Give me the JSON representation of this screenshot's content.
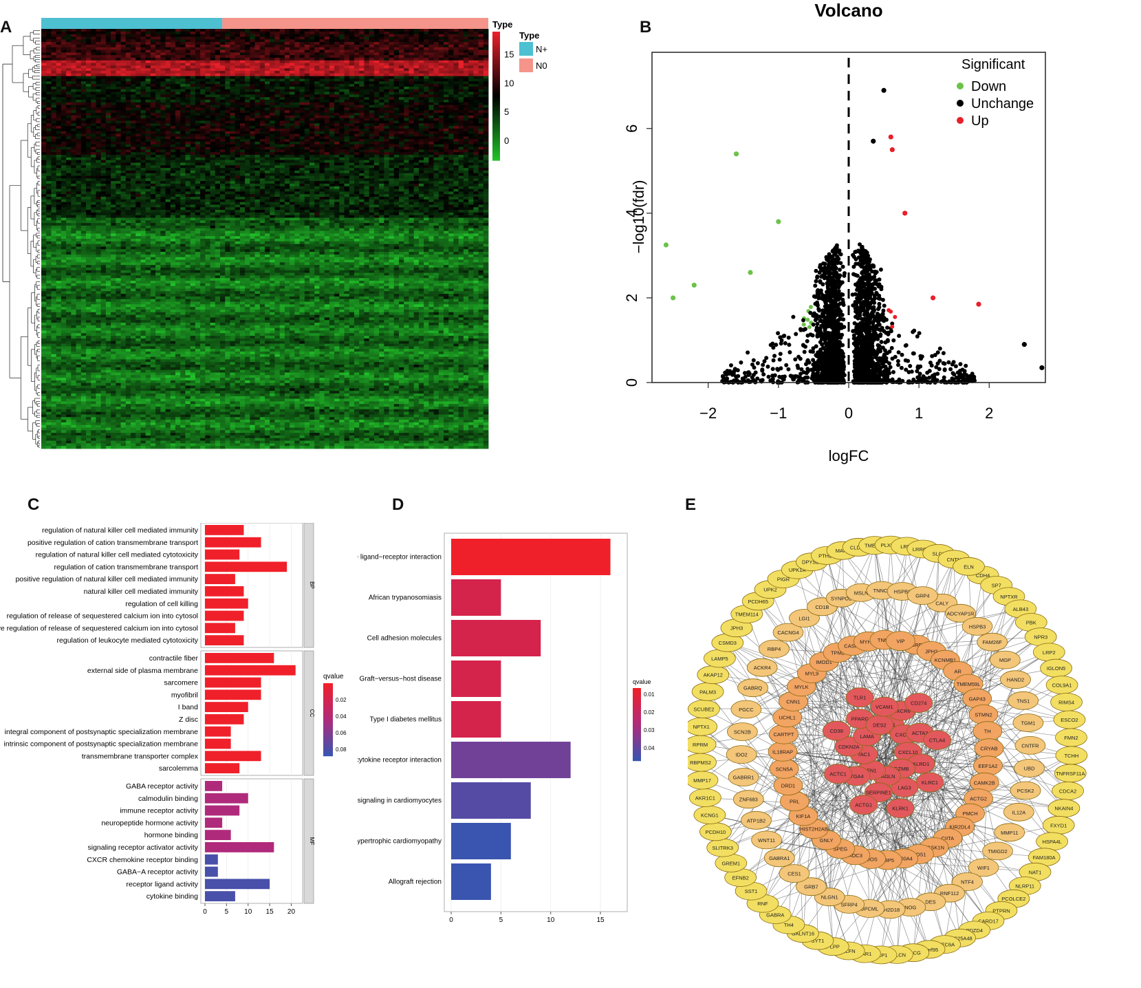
{
  "panels": {
    "a": "A",
    "b": "B",
    "c": "C",
    "d": "D",
    "e": "E"
  },
  "chart_data": [
    {
      "type": "heatmap",
      "panel": "A",
      "legend_title": "Type",
      "group_legend_title": "Type",
      "groups": [
        {
          "name": "N+",
          "color": "#4dc0d1"
        },
        {
          "name": "N0",
          "color": "#f4948a"
        }
      ],
      "colorbar_ticks": [
        15,
        10,
        5,
        0
      ],
      "colorbar_range": [
        -3,
        19
      ],
      "colors": {
        "low": "#22c02a",
        "mid": "#000000",
        "high": "#e8202a"
      }
    },
    {
      "type": "scatter",
      "panel": "B",
      "title": "Volcano",
      "xlabel": "logFC",
      "ylabel": "−log10(fdr)",
      "xlim": [
        -2.8,
        2.8
      ],
      "ylim": [
        0,
        7.8
      ],
      "xticks": [
        -2,
        -1,
        0,
        1,
        2
      ],
      "xtick_labels": [
        "−2",
        "−1",
        "0",
        "1",
        "2"
      ],
      "yticks": [
        0,
        2,
        4,
        6
      ],
      "ytick_labels": [
        "0",
        "2",
        "4",
        "6"
      ],
      "legend_title": "Significant",
      "legend_position": "top-right",
      "series": [
        {
          "name": "Down",
          "color": "#6cc24a"
        },
        {
          "name": "Unchange",
          "color": "#000000"
        },
        {
          "name": "Up",
          "color": "#e8202a"
        }
      ],
      "highlight_points": [
        {
          "x": -2.6,
          "y": 3.25,
          "s": "Down"
        },
        {
          "x": -1.6,
          "y": 5.4,
          "s": "Down"
        },
        {
          "x": -1.0,
          "y": 3.8,
          "s": "Down"
        },
        {
          "x": -2.5,
          "y": 2.0,
          "s": "Down"
        },
        {
          "x": -2.2,
          "y": 2.3,
          "s": "Down"
        },
        {
          "x": -1.4,
          "y": 2.6,
          "s": "Down"
        },
        {
          "x": 0.5,
          "y": 6.9,
          "s": "Unchange"
        },
        {
          "x": 0.35,
          "y": 5.7,
          "s": "Unchange"
        },
        {
          "x": 2.5,
          "y": 0.9,
          "s": "Unchange"
        },
        {
          "x": 2.75,
          "y": 0.35,
          "s": "Unchange"
        },
        {
          "x": 0.6,
          "y": 5.8,
          "s": "Up"
        },
        {
          "x": 0.62,
          "y": 5.5,
          "s": "Up"
        },
        {
          "x": 0.8,
          "y": 4.0,
          "s": "Up"
        },
        {
          "x": 1.85,
          "y": 1.85,
          "s": "Up"
        },
        {
          "x": 1.2,
          "y": 2.0,
          "s": "Up"
        }
      ]
    },
    {
      "type": "bar",
      "panel": "C",
      "orientation": "horizontal",
      "xticks": [
        0,
        5,
        10,
        15,
        20
      ],
      "xlim": [
        0,
        22
      ],
      "legend_title": "qvalue",
      "legend_ticks": [
        "0.02",
        "0.04",
        "0.06",
        "0.08"
      ],
      "groups": [
        {
          "name": "BP",
          "categories": [
            "regulation of natural killer cell mediated immunity",
            "positive regulation of cation transmembrane transport",
            "regulation of natural killer cell mediated cytotoxicity",
            "regulation of cation transmembrane transport",
            "positive regulation of natural killer cell mediated immunity",
            "natural killer cell mediated immunity",
            "regulation of cell killing",
            "regulation of release of sequestered calcium ion into cytosol",
            "positive regulation of release of sequestered calcium ion into cytosol",
            "regulation of leukocyte mediated cytotoxicity"
          ],
          "values": [
            9,
            13,
            8,
            19,
            7,
            9,
            10,
            9,
            7,
            9
          ],
          "qvalues": [
            0.01,
            0.01,
            0.01,
            0.01,
            0.01,
            0.01,
            0.01,
            0.01,
            0.01,
            0.01
          ]
        },
        {
          "name": "CC",
          "categories": [
            "contractile fiber",
            "external side of plasma membrane",
            "sarcomere",
            "myofibril",
            "I band",
            "Z disc",
            "integral component of postsynaptic specialization membrane",
            "intrinsic component of postsynaptic specialization membrane",
            "transmembrane transporter complex",
            "sarcolemma"
          ],
          "values": [
            16,
            21,
            13,
            13,
            10,
            9,
            6,
            6,
            13,
            8
          ],
          "qvalues": [
            0.01,
            0.01,
            0.01,
            0.01,
            0.01,
            0.01,
            0.01,
            0.01,
            0.01,
            0.01
          ]
        },
        {
          "name": "MF",
          "categories": [
            "GABA receptor activity",
            "calmodulin binding",
            "immune receptor activity",
            "neuropeptide hormone activity",
            "hormone binding",
            "signaling receptor activator activity",
            "CXCR chemokine receptor binding",
            "GABA−A receptor activity",
            "receptor ligand activity",
            "cytokine binding"
          ],
          "values": [
            4,
            10,
            8,
            4,
            6,
            16,
            3,
            3,
            15,
            7
          ],
          "qvalues": [
            0.05,
            0.05,
            0.05,
            0.05,
            0.05,
            0.05,
            0.085,
            0.085,
            0.085,
            0.085
          ]
        }
      ]
    },
    {
      "type": "bar",
      "panel": "D",
      "orientation": "horizontal",
      "xticks": [
        0,
        5,
        10,
        15
      ],
      "xlim": [
        0,
        17
      ],
      "legend_title": "qvalue",
      "legend_ticks": [
        "0.01",
        "0.02",
        "0.03",
        "0.04"
      ],
      "categories": [
        "Neuroactive ligand−receptor interaction",
        "African trypanosomiasis",
        "Cell adhesion molecules",
        "Graft−versus−host disease",
        "Type I diabetes mellitus",
        "Cytokine−cytokine receptor interaction",
        "Adrenergic signaling in cardiomyocytes",
        "Hypertrophic cardiomyopathy",
        "Allograft rejection"
      ],
      "values": [
        16,
        5,
        9,
        5,
        5,
        12,
        8,
        6,
        4
      ],
      "qvalues": [
        0.003,
        0.012,
        0.012,
        0.012,
        0.012,
        0.036,
        0.041,
        0.046,
        0.046
      ]
    },
    {
      "type": "network",
      "panel": "E",
      "rings": [
        {
          "level": "outer",
          "color": "#f2df62",
          "nodes": [
            "CDH4",
            "SP7",
            "NPTXR",
            "ALB43",
            "PBK",
            "NPR3",
            "LRP2",
            "IGLON5",
            "COL9A1",
            "RIMS4",
            "ESCO2",
            "FMN2",
            "TCHH",
            "TNFRSF11A",
            "CDCA2",
            "NKAIN4",
            "FXYD1",
            "HSPA4L",
            "FAM180A",
            "NAT1",
            "NLRP11",
            "PCOLCE2",
            "PTPRN",
            "CARD17",
            "PDZD4",
            "SLC25A48",
            "CLEC6A",
            "C1orf95",
            "SGCG",
            "NALCN",
            "PKP1",
            "HAR1",
            "ELFN",
            "PLPP",
            "SYT1",
            "GALNT16",
            "TH4",
            "GABRA",
            "RNF",
            "SST1",
            "EFNB2",
            "GREM1",
            "SLITRK3",
            "PCDH10",
            "KCNG1",
            "AKR1C1",
            "MMP17",
            "RBPMS2",
            "RPRM",
            "NPTX1",
            "SCUBE2",
            "PALM3",
            "AKAP12",
            "LAMP5",
            "CSMD3",
            "JPH3",
            "TMEM114",
            "PCDH65",
            "UPK2",
            "PIGR",
            "UPK1A",
            "DPYSL4",
            "PTHLH",
            "MAP6",
            "CLDN1",
            "TMEFF2",
            "PLXNA4",
            "LRP2",
            "LRRC4C",
            "SLC6",
            "CNTN",
            "ELN"
          ]
        },
        {
          "level": "second",
          "color": "#f3c67a",
          "nodes": [
            "CALY",
            "ADCYAP1R",
            "HSPB3",
            "FAM26F",
            "MGP",
            "HAND2",
            "TNS1",
            "TGM1",
            "CNTFR",
            "UBD",
            "PCSK2",
            "IL12A",
            "MMP11",
            "TMIGD2",
            "WIF1",
            "NTF4",
            "RNF112",
            "DES",
            "NOG",
            "SH2D18",
            "OPCML",
            "SFRP4",
            "NLGN1",
            "GRB7",
            "CES1",
            "GABRA1",
            "WNT11",
            "ATP1B2",
            "ZNF683",
            "GABRR1",
            "IDO2",
            "SCN2B",
            "PGCC",
            "GABRQ",
            "ACKR4",
            "RBP4",
            "CACNG4",
            "LGI1",
            "CD1B",
            "SYNPO2",
            "MSLN",
            "TNNC1",
            "HSPB8",
            "GRP4"
          ]
        },
        {
          "level": "third",
          "color": "#f2a462",
          "nodes": [
            "GRF",
            "JPH2",
            "KCNMB1",
            "AR",
            "TMEM59L",
            "GAP43",
            "STMN2",
            "TH",
            "CRYAB",
            "EEF1A2",
            "CAMK2B",
            "ACTG2",
            "PMCH",
            "KIR2DL4",
            "CIITA",
            "PCSK1N",
            "NOS1",
            "S100A4",
            "GBP5",
            "IDOS",
            "AOC3",
            "SPEG",
            "GNLY",
            "HIST2H2AB",
            "KIF1A",
            "PRL",
            "DRD1",
            "SCN5A",
            "IL18RAP",
            "CARTPT",
            "UCHL1",
            "CNN1",
            "MYLK",
            "MYL9",
            "IMOD1",
            "TPM2",
            "CASP1",
            "MYH11",
            "TNNT",
            "VIP"
          ]
        },
        {
          "level": "inner",
          "color": "#e2585c",
          "nodes": [
            "CD1",
            "CXCR6",
            "CD274",
            "CXCL9",
            "ACTA2",
            "CTLA4",
            "CXCL10",
            "KLRD1",
            "KLRC1",
            "GZMB",
            "LAG3",
            "KLRK1",
            "TAGLN",
            "SERPINE1",
            "ACTG1",
            "FN1",
            "ITGA4",
            "ACTC1",
            "TAC1",
            "CDKN2A",
            "CD38",
            "LAMA",
            "PPARG",
            "TLR1",
            "DES2",
            "VCAM1"
          ]
        }
      ]
    }
  ]
}
